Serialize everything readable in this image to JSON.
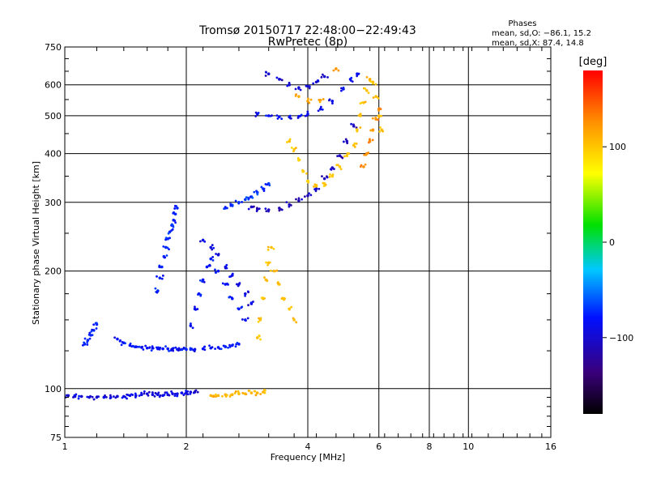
{
  "chart_data": {
    "type": "scatter",
    "title": "Tromsø 20150717 22:48:00−22:49:43",
    "subtitle": "RwPretec (8p)",
    "xlabel": "Frequency [MHz]",
    "ylabel": "Stationary phase Virtual Height [km]",
    "x_scale": "log",
    "y_scale": "log",
    "xlim": [
      1,
      16
    ],
    "ylim": [
      75,
      750
    ],
    "grid": true,
    "x_ticks": [
      "1",
      "2",
      "4",
      "6",
      "8",
      "10",
      "16"
    ],
    "y_ticks": [
      "75",
      "100",
      "200",
      "300",
      "400",
      "500",
      "600",
      "750"
    ],
    "stats": {
      "title": "Phases",
      "line1": "mean, sd,O: −86.1, 15.2",
      "line2": "mean, sd,X:  87.4, 14.8"
    },
    "colorbar": {
      "label": "[deg]",
      "ticks": [
        "100",
        "0",
        "−100"
      ],
      "tick_values": [
        100,
        0,
        -100
      ],
      "range": [
        -180,
        180
      ]
    },
    "series": [
      {
        "phase": -110,
        "x": [
          1.02,
          1.06,
          1.1,
          1.15,
          1.2,
          1.25,
          1.3,
          1.35,
          1.4,
          1.45,
          1.5,
          1.55,
          1.6,
          1.65,
          1.7,
          1.75,
          1.8,
          1.85,
          1.9,
          1.95,
          2.0,
          2.05,
          2.1
        ],
        "y": [
          96,
          95.5,
          95.5,
          95,
          95,
          95,
          95,
          95.5,
          95.5,
          96,
          96,
          96.5,
          97,
          96.5,
          96.5,
          96,
          96.5,
          97,
          97,
          97.5,
          97.5,
          98,
          98
        ]
      },
      {
        "phase": -95,
        "x": [
          1.12,
          1.14,
          1.16,
          1.18,
          1.2
        ],
        "y": [
          130,
          133,
          137,
          141,
          146
        ]
      },
      {
        "phase": -100,
        "x": [
          1.35,
          1.4,
          1.45,
          1.5,
          1.55,
          1.6,
          1.65,
          1.7,
          1.75,
          1.8,
          1.85,
          1.9,
          1.95,
          2.0,
          2.05,
          2.1,
          2.2,
          2.3,
          2.4,
          2.5,
          2.6,
          2.7
        ],
        "y": [
          134,
          131,
          129,
          128,
          127.5,
          127,
          127,
          126.5,
          126.5,
          126.5,
          126.5,
          126,
          126,
          126,
          126,
          126,
          126.5,
          127,
          127.5,
          128,
          129,
          130
        ]
      },
      {
        "phase": -95,
        "x": [
          1.7,
          1.72,
          1.74,
          1.76,
          1.78,
          1.8,
          1.82,
          1.84,
          1.86,
          1.88,
          1.9
        ],
        "y": [
          178,
          192,
          205,
          218,
          230,
          242,
          252,
          262,
          270,
          280,
          290
        ]
      },
      {
        "phase": -100,
        "x": [
          2.05,
          2.1,
          2.15,
          2.2,
          2.25,
          2.3,
          2.4,
          2.5,
          2.6,
          2.7,
          2.8
        ],
        "y": [
          145,
          160,
          175,
          190,
          205,
          215,
          200,
          185,
          170,
          160,
          150
        ]
      },
      {
        "phase": -110,
        "x": [
          2.2,
          2.3,
          2.4,
          2.5,
          2.6,
          2.7,
          2.8,
          2.9
        ],
        "y": [
          240,
          230,
          220,
          205,
          195,
          185,
          175,
          165
        ]
      },
      {
        "phase": -90,
        "x": [
          2.5,
          2.6,
          2.7,
          2.8,
          2.9,
          3.0,
          3.1,
          3.2
        ],
        "y": [
          290,
          295,
          300,
          305,
          310,
          318,
          325,
          335
        ]
      },
      {
        "phase": -120,
        "x": [
          2.9,
          3.0,
          3.2,
          3.4,
          3.6,
          3.8,
          4.0,
          4.2,
          4.4,
          4.6,
          4.8,
          5.0,
          5.2
        ],
        "y": [
          292,
          288,
          287,
          290,
          296,
          303,
          312,
          325,
          345,
          368,
          395,
          430,
          470
        ]
      },
      {
        "phase": -105,
        "x": [
          3.0,
          3.2,
          3.4,
          3.6,
          3.8,
          4.0,
          4.3,
          4.6,
          4.9,
          5.1,
          5.3
        ],
        "y": [
          505,
          500,
          497,
          496,
          498,
          505,
          520,
          545,
          585,
          620,
          640
        ]
      },
      {
        "phase": -115,
        "x": [
          3.2,
          3.4,
          3.6,
          3.8,
          4.0,
          4.2,
          4.4
        ],
        "y": [
          640,
          620,
          600,
          590,
          595,
          610,
          630
        ]
      },
      {
        "phase": 100,
        "x": [
          2.3,
          2.4,
          2.5,
          2.6,
          2.7,
          2.8,
          2.9,
          3.0,
          3.1
        ],
        "y": [
          96,
          96,
          96.5,
          96.5,
          97,
          97,
          97.5,
          97.5,
          98
        ]
      },
      {
        "phase": 95,
        "x": [
          3.0,
          3.05,
          3.1,
          3.15,
          3.2,
          3.25,
          3.3,
          3.4,
          3.5,
          3.6,
          3.7
        ],
        "y": [
          135,
          150,
          170,
          190,
          210,
          230,
          200,
          185,
          170,
          160,
          150
        ]
      },
      {
        "phase": 90,
        "x": [
          3.6,
          3.7,
          3.8,
          3.9,
          4.0,
          4.2,
          4.4,
          4.6,
          4.8,
          5.0
        ],
        "y": [
          430,
          410,
          385,
          360,
          340,
          330,
          335,
          350,
          370,
          395
        ]
      },
      {
        "phase": 95,
        "x": [
          5.2,
          5.3,
          5.4,
          5.5,
          5.6,
          5.7,
          5.8,
          5.9,
          6.0,
          6.1
        ],
        "y": [
          420,
          460,
          500,
          540,
          580,
          620,
          610,
          560,
          500,
          460
        ]
      },
      {
        "phase": 120,
        "x": [
          5.5,
          5.6,
          5.7,
          5.8,
          5.9,
          6.0
        ],
        "y": [
          370,
          400,
          430,
          460,
          490,
          520
        ]
      },
      {
        "phase": 110,
        "x": [
          3.8,
          4.0,
          4.3,
          4.7
        ],
        "y": [
          560,
          545,
          548,
          660
        ]
      }
    ]
  }
}
